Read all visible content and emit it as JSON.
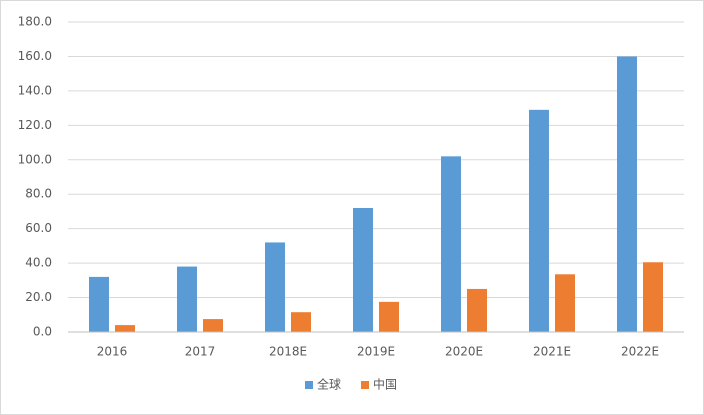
{
  "chart_data": {
    "type": "bar",
    "categories": [
      "2016",
      "2017",
      "2018E",
      "2019E",
      "2020E",
      "2021E",
      "2022E"
    ],
    "series": [
      {
        "name": "全球",
        "color": "#5b9bd5",
        "values": [
          32,
          38,
          52,
          72,
          102,
          129,
          160
        ]
      },
      {
        "name": "中国",
        "color": "#ed7d31",
        "values": [
          4,
          7.5,
          11.5,
          17.5,
          25,
          33.5,
          40.5
        ]
      }
    ],
    "ylim": [
      0,
      180
    ],
    "yticks": [
      {
        "value": 0,
        "label": "0.0"
      },
      {
        "value": 20,
        "label": "20.0"
      },
      {
        "value": 40,
        "label": "40.0"
      },
      {
        "value": 60,
        "label": "60.0"
      },
      {
        "value": 80,
        "label": "80.0"
      },
      {
        "value": 100,
        "label": "100.0"
      },
      {
        "value": 120,
        "label": "120.0"
      },
      {
        "value": 140,
        "label": "140.0"
      },
      {
        "value": 160,
        "label": "160.0"
      },
      {
        "value": 180,
        "label": "180.0"
      }
    ],
    "grid": true,
    "legend": "bottom"
  }
}
